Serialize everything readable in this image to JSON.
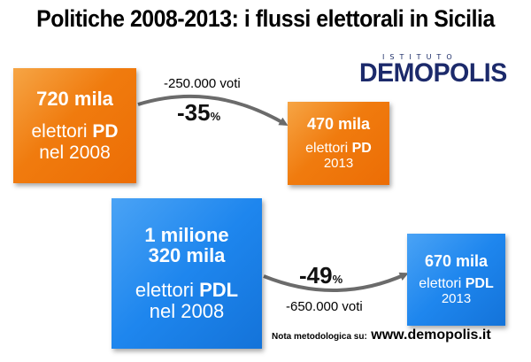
{
  "title": "Politiche 2008-2013: i flussi elettorali in Sicilia",
  "logo": {
    "sub": "ISTITUTO",
    "main": "DEMOPOLIS"
  },
  "pd": {
    "from": {
      "value": "720 mila",
      "label_pre": "elettori ",
      "label_party": "PD",
      "year": "nel 2008"
    },
    "to": {
      "value": "470 mila",
      "label_pre": "elettori ",
      "label_party": "PD",
      "year": "2013"
    },
    "votes": "-250.000 voti",
    "pct": "-35",
    "pct_sign": "%"
  },
  "pdl": {
    "from": {
      "value_line1": "1 milione",
      "value_line2": "320 mila",
      "label_pre": "elettori ",
      "label_party": "PDL",
      "year": "nel 2008"
    },
    "to": {
      "value": "670 mila",
      "label_pre": "elettori ",
      "label_party": "PDL",
      "year": "2013"
    },
    "votes": "-650.000 voti",
    "pct": "-49",
    "pct_sign": "%"
  },
  "footer": {
    "label": "Nota metodologica su:",
    "url": "www.demopolis.it"
  },
  "colors": {
    "orange": "#ef7a10",
    "blue": "#1e86ee",
    "arrow": "#6b6b6b",
    "logo": "#1c2a6b"
  }
}
